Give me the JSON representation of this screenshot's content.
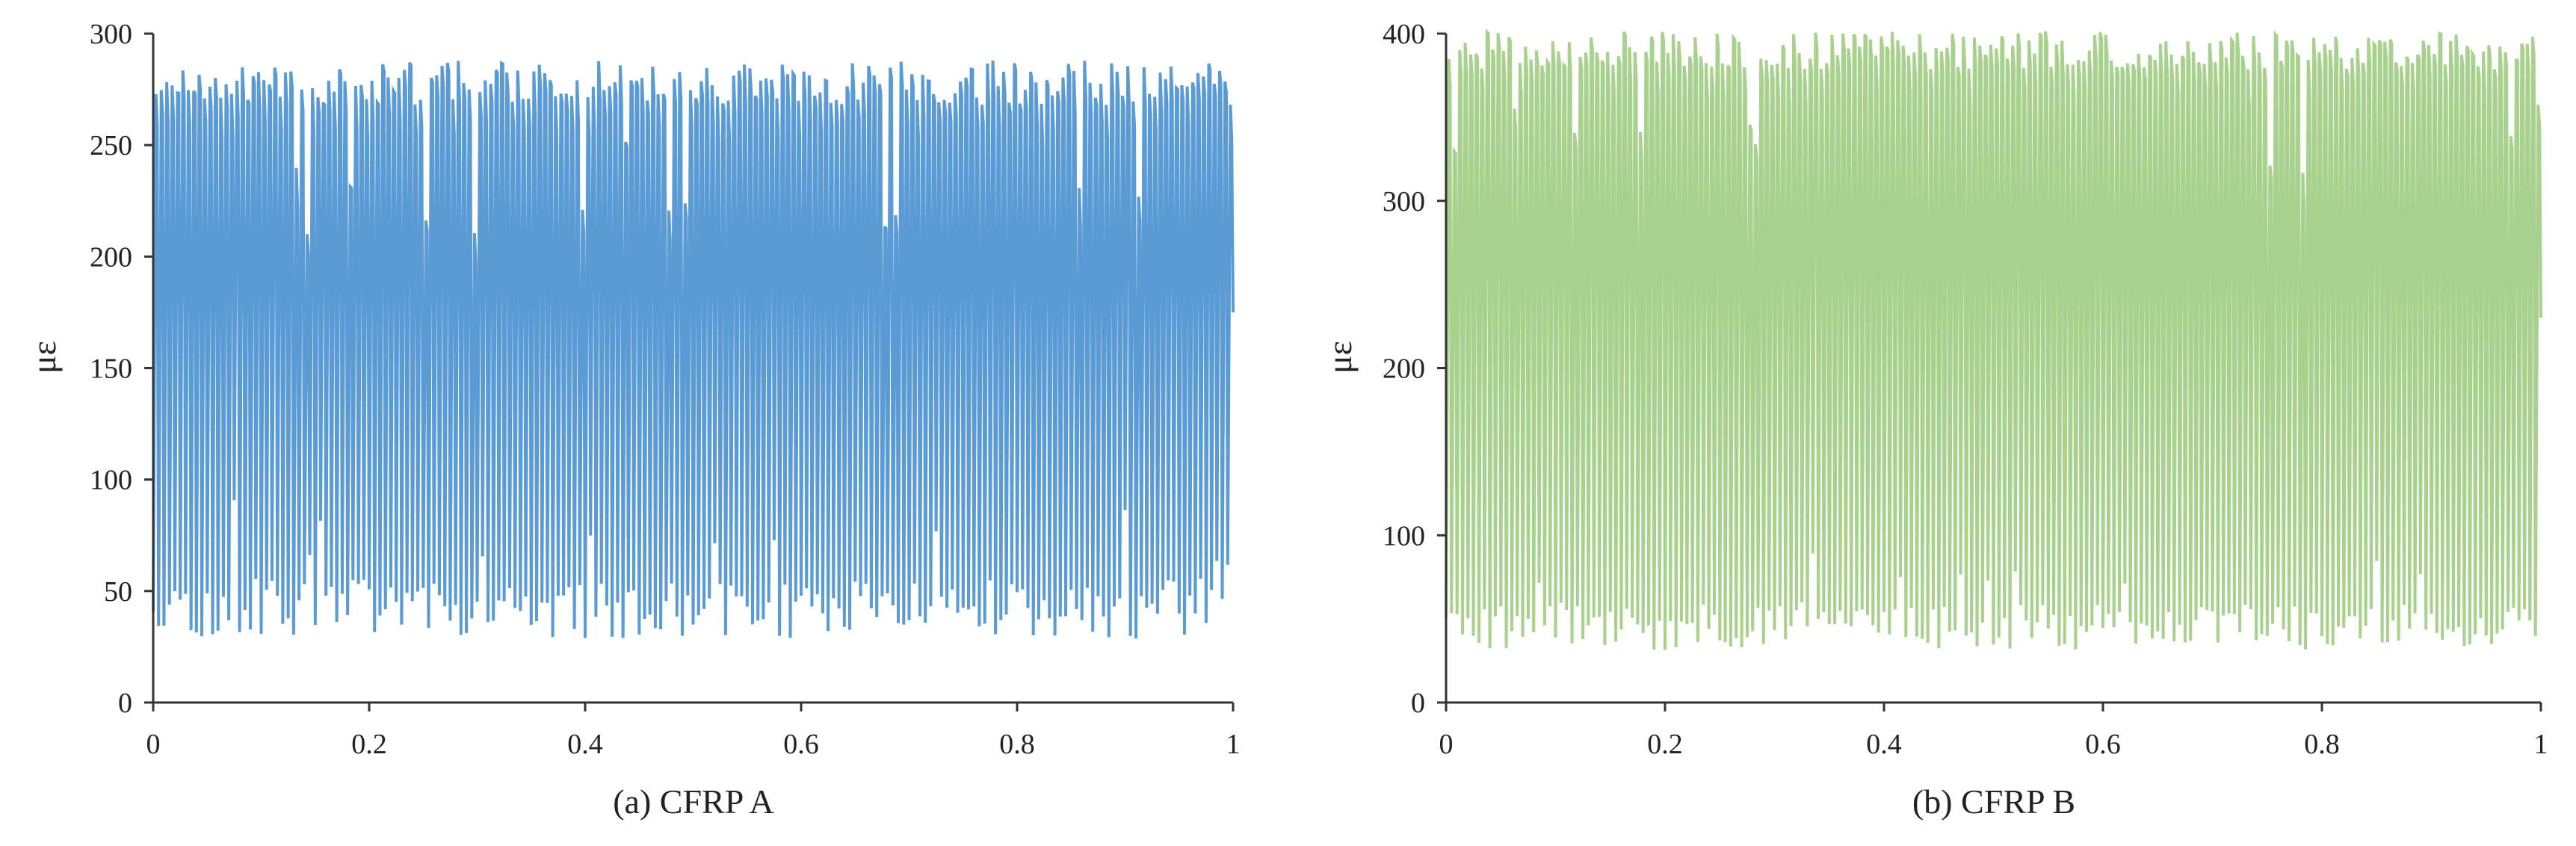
{
  "chart_data": [
    {
      "type": "line",
      "caption": "(a) CFRP A",
      "xlabel": "",
      "ylabel": "με",
      "xlim": [
        0,
        1
      ],
      "ylim": [
        0,
        300
      ],
      "x_ticks": [
        "0",
        "0.2",
        "0.4",
        "0.6",
        "0.8",
        "1"
      ],
      "y_ticks": [
        "0",
        "50",
        "100",
        "150",
        "200",
        "250",
        "300"
      ],
      "grid": false,
      "color": "#5b9bd5",
      "series": [
        {
          "description": "cyclic strain signal",
          "cycles": 200,
          "peak_range": [
            265,
            285
          ],
          "trough_range": [
            28,
            55
          ],
          "mean_peak": 278,
          "mean_trough": 42,
          "end_value": 175
        }
      ]
    },
    {
      "type": "line",
      "caption": "(b) CFRP B",
      "xlabel": "",
      "ylabel": "με",
      "xlim": [
        0,
        1
      ],
      "ylim": [
        0,
        400
      ],
      "x_ticks": [
        "0",
        "0.2",
        "0.4",
        "0.6",
        "0.8",
        "1"
      ],
      "y_ticks": [
        "0",
        "100",
        "200",
        "300",
        "400"
      ],
      "grid": false,
      "color": "#a9d18e",
      "series": [
        {
          "description": "cyclic strain signal",
          "cycles": 200,
          "peak_range": [
            375,
            398
          ],
          "trough_range": [
            33,
            60
          ],
          "mean_peak": 390,
          "mean_trough": 45,
          "end_value": 230
        }
      ]
    }
  ]
}
